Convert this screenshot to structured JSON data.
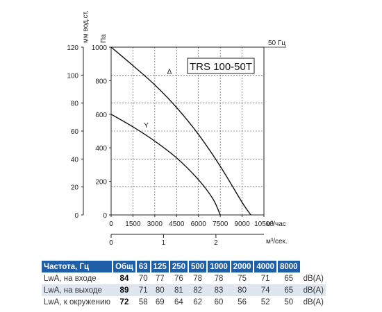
{
  "chart_data": {
    "type": "line",
    "label_box": "TRS 100-50T",
    "freq_label": "50 Гц",
    "y_left_label": "мм вод.ст.",
    "y_right_label": "Па",
    "y_left_ticks": [
      "0",
      "20",
      "40",
      "60",
      "80",
      "100",
      "120"
    ],
    "y_right_ticks": [
      "0",
      "200",
      "400",
      "600",
      "800",
      "1000"
    ],
    "x_ticks": [
      "0",
      "1500",
      "3000",
      "4500",
      "6000",
      "7500",
      "9000",
      "10500"
    ],
    "x_unit": "м³/час",
    "x2_ticks": [
      "0",
      "1",
      "2"
    ],
    "x2_unit": "м³/сек.",
    "xlim": [
      0,
      10500
    ],
    "ylim": [
      0,
      1000
    ],
    "x2_per_unit": 3600,
    "series": [
      {
        "name": "Δ",
        "x": [
          0,
          1500,
          3000,
          4500,
          6000,
          7500,
          9000,
          9600
        ],
        "y": [
          1000,
          890,
          775,
          640,
          480,
          290,
          75,
          0
        ]
      },
      {
        "name": "Y",
        "x": [
          0,
          1500,
          3000,
          4500,
          6000,
          7000,
          7500
        ],
        "y": [
          600,
          525,
          440,
          340,
          210,
          95,
          0
        ]
      }
    ]
  },
  "table": {
    "headers": [
      "Частота, Гц",
      "Общ",
      "63",
      "125",
      "250",
      "500",
      "1000",
      "2000",
      "4000",
      "8000"
    ],
    "rows": [
      {
        "label": "LwA, на входе",
        "values": [
          "84",
          "70",
          "77",
          "76",
          "78",
          "78",
          "75",
          "71",
          "65"
        ],
        "unit": "dB(A)"
      },
      {
        "label": "LwA, на выходе",
        "values": [
          "89",
          "71",
          "80",
          "81",
          "82",
          "83",
          "80",
          "74",
          "65"
        ],
        "unit": "dB(A)"
      },
      {
        "label": "LwA, к окружению",
        "values": [
          "72",
          "58",
          "69",
          "64",
          "62",
          "60",
          "56",
          "52",
          "50"
        ],
        "unit": "dB(A)"
      }
    ]
  }
}
